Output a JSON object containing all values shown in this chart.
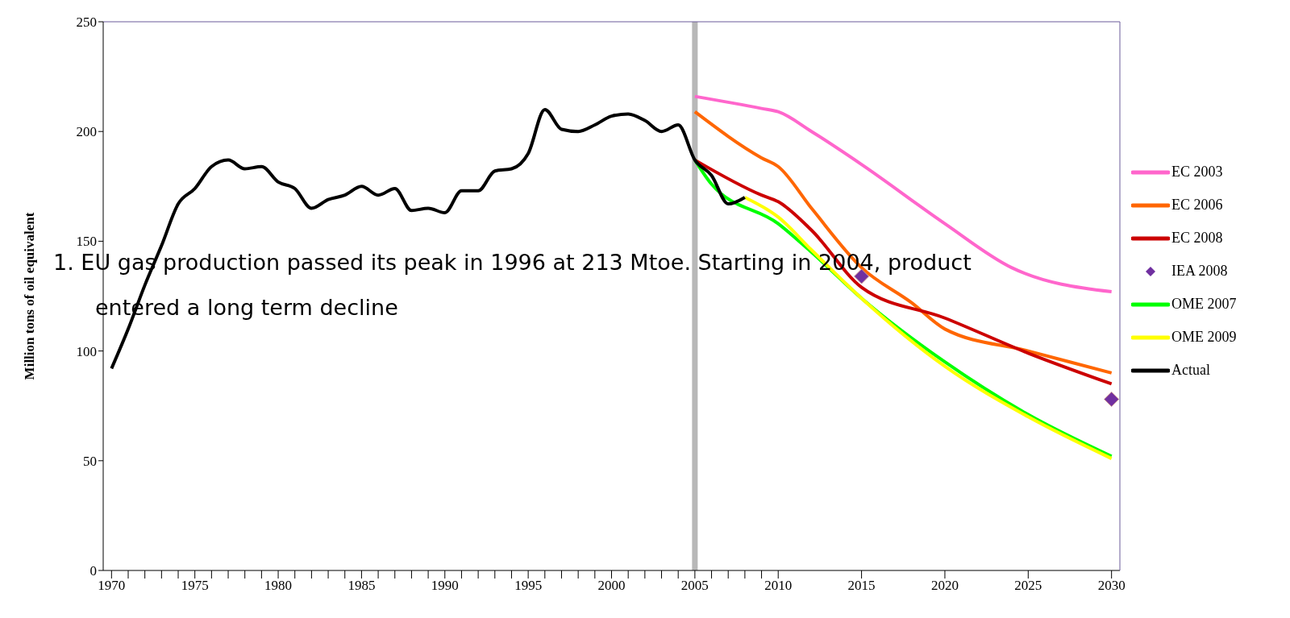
{
  "chart_data": {
    "type": "line",
    "ylabel": "Million tons of oil equivalent",
    "xlim": [
      1969.5,
      2030.5
    ],
    "xticks": [
      1970,
      {
        "value": 1971,
        "label": null
      },
      {
        "value": 1972,
        "label": null
      },
      {
        "value": 1973,
        "label": null
      },
      {
        "value": 1974,
        "label": null
      },
      1975,
      {
        "value": 1976,
        "label": null
      },
      {
        "value": 1977,
        "label": null
      },
      {
        "value": 1978,
        "label": null
      },
      {
        "value": 1979,
        "label": null
      },
      1980,
      {
        "value": 1981,
        "label": null
      },
      {
        "value": 1982,
        "label": null
      },
      {
        "value": 1983,
        "label": null
      },
      {
        "value": 1984,
        "label": null
      },
      1985,
      {
        "value": 1986,
        "label": null
      },
      {
        "value": 1987,
        "label": null
      },
      {
        "value": 1988,
        "label": null
      },
      {
        "value": 1989,
        "label": null
      },
      1990,
      {
        "value": 1991,
        "label": null
      },
      {
        "value": 1992,
        "label": null
      },
      {
        "value": 1993,
        "label": null
      },
      {
        "value": 1994,
        "label": null
      },
      1995,
      {
        "value": 1996,
        "label": null
      },
      {
        "value": 1997,
        "label": null
      },
      {
        "value": 1998,
        "label": null
      },
      {
        "value": 1999,
        "label": null
      },
      2000,
      {
        "value": 2001,
        "label": null
      },
      {
        "value": 2002,
        "label": null
      },
      {
        "value": 2003,
        "label": null
      },
      {
        "value": 2004,
        "label": null
      },
      2005,
      {
        "value": 2006,
        "label": null
      },
      {
        "value": 2007,
        "label": null
      },
      {
        "value": 2008,
        "label": null
      },
      {
        "value": 2009,
        "label": null
      },
      2010,
      2015,
      2020,
      2025,
      2030
    ],
    "ylim": [
      0,
      250
    ],
    "yticks": [
      0,
      50,
      100,
      150,
      200,
      250
    ],
    "grid": false,
    "legend": "right",
    "marker": "none",
    "line_style": "solid",
    "ref_lines": [
      {
        "axis": "x",
        "value": 2005,
        "color": "#b8b8b8"
      }
    ],
    "annotations": [
      "1.  EU gas production passed its peak in 1996 at 213 Mtoe. Starting in 2004, product entered a long term decline"
    ],
    "series": [
      {
        "name": "EC 2003",
        "color": "#ff66cc",
        "x": [
          2005,
          2009,
          2010,
          2012,
          2015,
          2020,
          2024,
          2030
        ],
        "values": [
          216,
          210.5,
          209,
          200,
          185,
          158,
          138,
          127
        ]
      },
      {
        "name": "EC 2006",
        "color": "#ff6600",
        "x": [
          2005,
          2009,
          2010,
          2012,
          2015,
          2018,
          2020,
          2025,
          2030
        ],
        "values": [
          209,
          188,
          184,
          165,
          138,
          122,
          110,
          100,
          90
        ]
      },
      {
        "name": "EC 2008",
        "color": "#cc0000",
        "x": [
          2005,
          2009,
          2010,
          2012,
          2015,
          2020,
          2025,
          2030
        ],
        "values": [
          187,
          171,
          168,
          155,
          129,
          115,
          99,
          85
        ]
      },
      {
        "name": "IEA 2008",
        "type": "scatter",
        "marker": "diamond",
        "color": "#7030a0",
        "x": [
          2015,
          2030
        ],
        "values": [
          134,
          78
        ]
      },
      {
        "name": "OME 2007",
        "color": "#00ff00",
        "x": [
          2005,
          2006,
          2010,
          2012,
          2015,
          2020,
          2025,
          2030
        ],
        "values": [
          187,
          176,
          158,
          145,
          124,
          95,
          71,
          52
        ]
      },
      {
        "name": "OME 2009",
        "color": "#ffff00",
        "x": [
          2008,
          2010,
          2012,
          2015,
          2020,
          2025,
          2030
        ],
        "values": [
          170,
          161,
          146,
          124,
          93,
          70,
          51
        ]
      },
      {
        "name": "Actual",
        "color": "#000000",
        "x": [
          1970,
          1971,
          1972,
          1973,
          1974,
          1975,
          1976,
          1977,
          1978,
          1979,
          1980,
          1981,
          1982,
          1983,
          1984,
          1985,
          1986,
          1987,
          1988,
          1989,
          1990,
          1991,
          1992,
          1993,
          1994,
          1995,
          1996,
          1997,
          1998,
          1999,
          2000,
          2001,
          2002,
          2003,
          2004,
          2005,
          2006,
          2007,
          2008
        ],
        "values": [
          92,
          110,
          130,
          148,
          167,
          174,
          184,
          187,
          183,
          184,
          177,
          174,
          165,
          169,
          171,
          175,
          171,
          174,
          164,
          165,
          163,
          173,
          173,
          182,
          183,
          190,
          210,
          201,
          200,
          203,
          207,
          208,
          205,
          200,
          203,
          187,
          180,
          167,
          170
        ]
      }
    ]
  }
}
